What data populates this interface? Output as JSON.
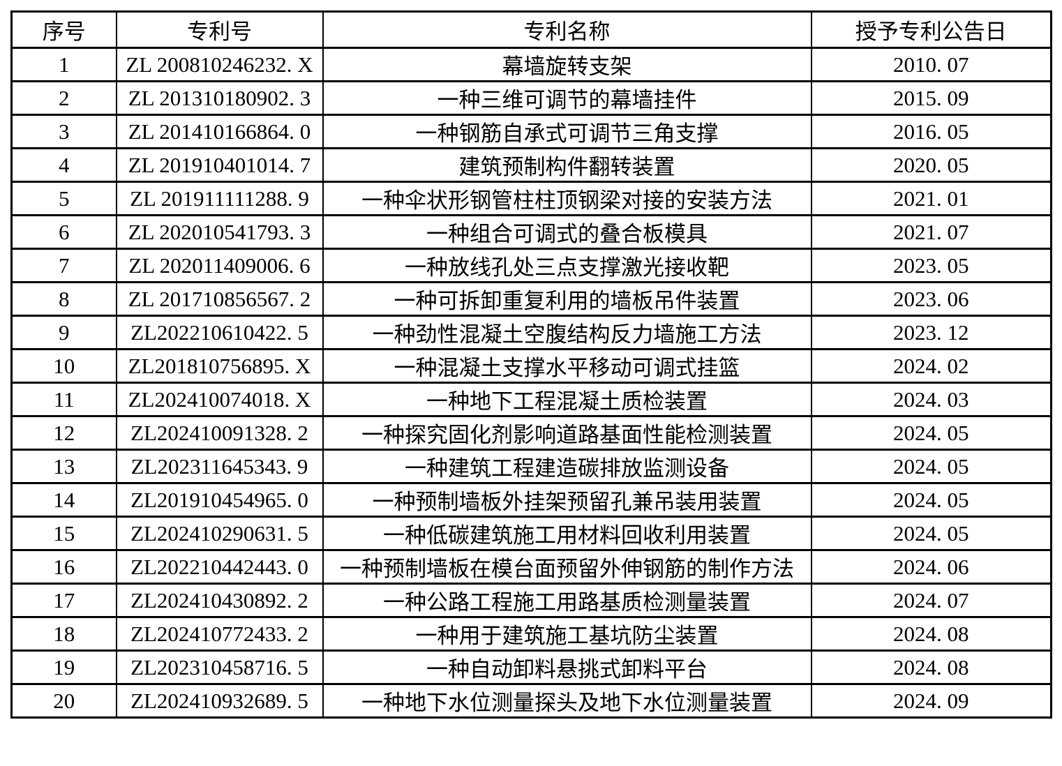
{
  "page": {
    "background_color": "#ffffff",
    "border_color": "#000000",
    "text_color": "#000000"
  },
  "table": {
    "columns": [
      {
        "key": "no",
        "label": "序号"
      },
      {
        "key": "patent_no",
        "label": "专利号"
      },
      {
        "key": "name",
        "label": "专利名称"
      },
      {
        "key": "date",
        "label": "授予专利公告日"
      }
    ],
    "rows": [
      {
        "no": "1",
        "patent_no": "ZL 200810246232. X",
        "name": "幕墙旋转支架",
        "date": "2010. 07"
      },
      {
        "no": "2",
        "patent_no": "ZL 201310180902. 3",
        "name": "一种三维可调节的幕墙挂件",
        "date": "2015. 09"
      },
      {
        "no": "3",
        "patent_no": "ZL 201410166864. 0",
        "name": "一种钢筋自承式可调节三角支撑",
        "date": "2016. 05"
      },
      {
        "no": "4",
        "patent_no": "ZL 201910401014. 7",
        "name": "建筑预制构件翻转装置",
        "date": "2020. 05"
      },
      {
        "no": "5",
        "patent_no": "ZL 201911111288. 9",
        "name": "一种伞状形钢管柱柱顶钢梁对接的安装方法",
        "date": "2021. 01"
      },
      {
        "no": "6",
        "patent_no": "ZL 202010541793. 3",
        "name": "一种组合可调式的叠合板模具",
        "date": "2021. 07"
      },
      {
        "no": "7",
        "patent_no": "ZL 202011409006. 6",
        "name": "一种放线孔处三点支撑激光接收靶",
        "date": "2023. 05"
      },
      {
        "no": "8",
        "patent_no": "ZL 201710856567. 2",
        "name": "一种可拆卸重复利用的墙板吊件装置",
        "date": "2023. 06"
      },
      {
        "no": "9",
        "patent_no": "ZL202210610422. 5",
        "name": "一种劲性混凝土空腹结构反力墙施工方法",
        "date": "2023. 12"
      },
      {
        "no": "10",
        "patent_no": "ZL201810756895. X",
        "name": "一种混凝土支撑水平移动可调式挂篮",
        "date": "2024. 02"
      },
      {
        "no": "11",
        "patent_no": "ZL202410074018. X",
        "name": "一种地下工程混凝土质检装置",
        "date": "2024. 03"
      },
      {
        "no": "12",
        "patent_no": "ZL202410091328. 2",
        "name": "一种探究固化剂影响道路基面性能检测装置",
        "date": "2024. 05"
      },
      {
        "no": "13",
        "patent_no": "ZL202311645343. 9",
        "name": "一种建筑工程建造碳排放监测设备",
        "date": "2024. 05"
      },
      {
        "no": "14",
        "patent_no": "ZL201910454965. 0",
        "name": "一种预制墙板外挂架预留孔兼吊装用装置",
        "date": "2024. 05"
      },
      {
        "no": "15",
        "patent_no": "ZL202410290631. 5",
        "name": "一种低碳建筑施工用材料回收利用装置",
        "date": "2024. 05"
      },
      {
        "no": "16",
        "patent_no": "ZL202210442443. 0",
        "name": "一种预制墙板在模台面预留外伸钢筋的制作方法",
        "date": "2024. 06"
      },
      {
        "no": "17",
        "patent_no": "ZL202410430892. 2",
        "name": "一种公路工程施工用路基质检测量装置",
        "date": "2024. 07"
      },
      {
        "no": "18",
        "patent_no": "ZL202410772433. 2",
        "name": "一种用于建筑施工基坑防尘装置",
        "date": "2024. 08"
      },
      {
        "no": "19",
        "patent_no": "ZL202310458716. 5",
        "name": "一种自动卸料悬挑式卸料平台",
        "date": "2024. 08"
      },
      {
        "no": "20",
        "patent_no": "ZL202410932689. 5",
        "name": "一种地下水位测量探头及地下水位测量装置",
        "date": "2024. 09"
      }
    ]
  }
}
